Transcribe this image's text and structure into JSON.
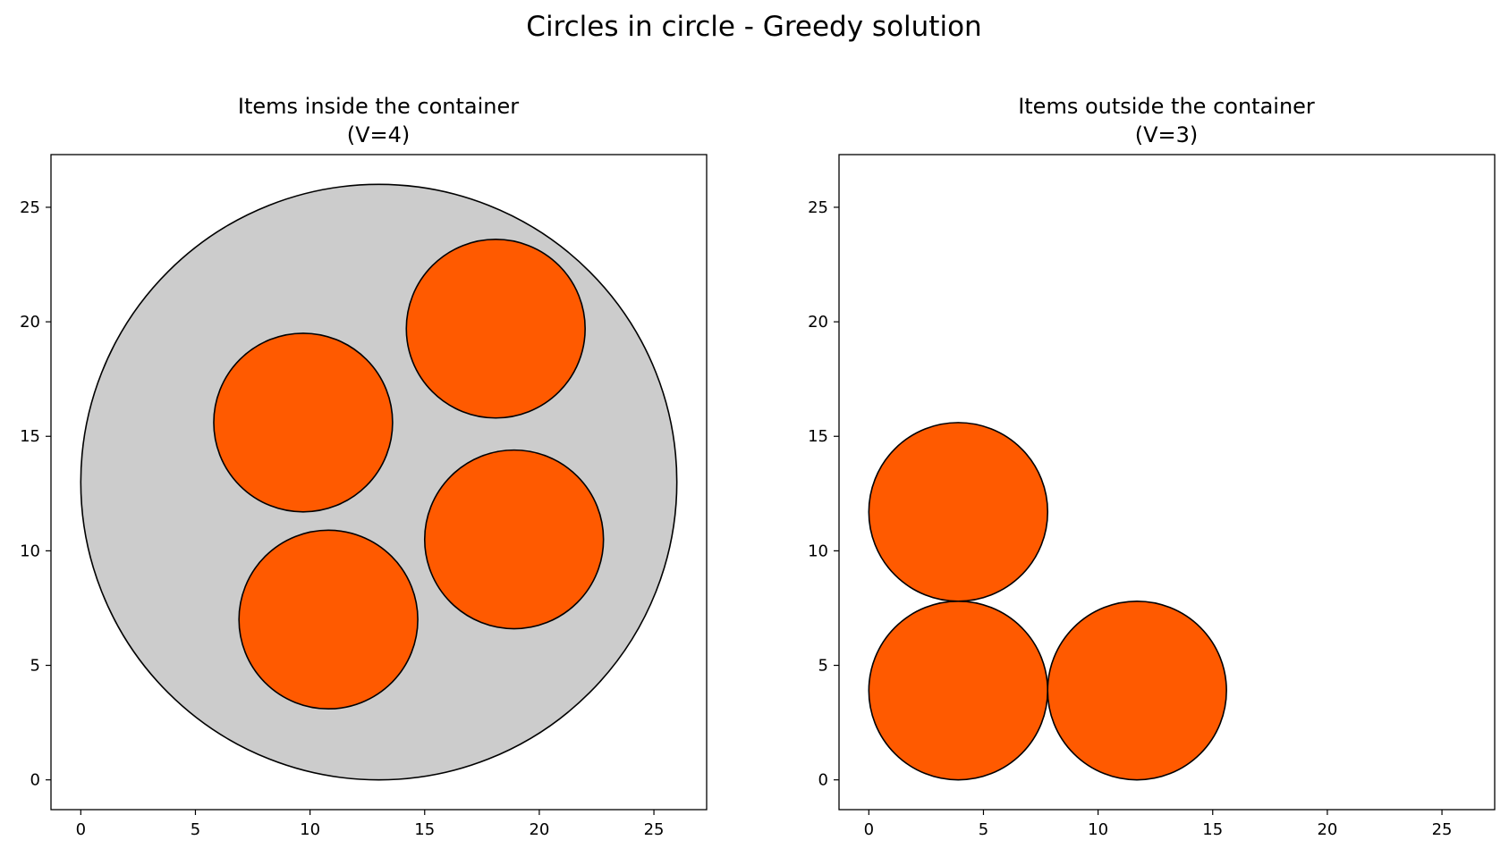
{
  "figure": {
    "title": "Circles in circle - Greedy solution"
  },
  "colors": {
    "item_fill": "#FF5A00",
    "container_fill": "#CCCCCC",
    "stroke": "#000000",
    "background": "#FFFFFF"
  },
  "chart_data": [
    {
      "type": "scatter",
      "title_line1": "Items inside the container",
      "title_line2": "(V=4)",
      "xlim": [
        -1.3,
        27.3
      ],
      "ylim": [
        -1.3,
        27.3
      ],
      "xticks": [
        0,
        5,
        10,
        15,
        20,
        25
      ],
      "yticks": [
        0,
        5,
        10,
        15,
        20,
        25
      ],
      "grid": false,
      "container": {
        "cx": 13,
        "cy": 13,
        "r": 13
      },
      "circles": [
        {
          "cx": 18.1,
          "cy": 19.7,
          "r": 3.9
        },
        {
          "cx": 9.7,
          "cy": 15.6,
          "r": 3.9
        },
        {
          "cx": 18.9,
          "cy": 10.5,
          "r": 3.9
        },
        {
          "cx": 10.8,
          "cy": 7.0,
          "r": 3.9
        }
      ]
    },
    {
      "type": "scatter",
      "title_line1": "Items outside the container",
      "title_line2": "(V=3)",
      "xlim": [
        -1.3,
        27.3
      ],
      "ylim": [
        -1.3,
        27.3
      ],
      "xticks": [
        0,
        5,
        10,
        15,
        20,
        25
      ],
      "yticks": [
        0,
        5,
        10,
        15,
        20,
        25
      ],
      "grid": false,
      "container": null,
      "circles": [
        {
          "cx": 3.9,
          "cy": 11.7,
          "r": 3.9
        },
        {
          "cx": 3.9,
          "cy": 3.9,
          "r": 3.9
        },
        {
          "cx": 11.7,
          "cy": 3.9,
          "r": 3.9
        }
      ]
    }
  ]
}
